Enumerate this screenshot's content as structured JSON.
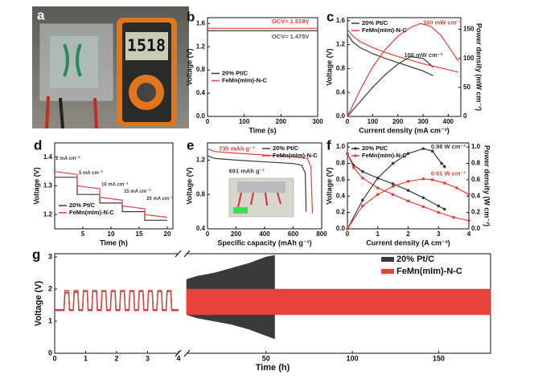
{
  "panel_a": {
    "label": "a",
    "display": "1518"
  },
  "chart_data": [
    {
      "type": "line",
      "label": "b",
      "xlabel": "Time (s)",
      "ylabel": "Voltage (V)",
      "xlim": [
        0,
        300
      ],
      "xticks": [
        0,
        100,
        200,
        300
      ],
      "ylim": [
        0,
        1.7
      ],
      "yticks": [
        {
          "value": 0,
          "label": "0.0"
        },
        0.4,
        0.8,
        1.2,
        1.6
      ],
      "legend": "center-left",
      "series": [
        {
          "name": "20% Pt/C",
          "color": "#3a3a3a",
          "x": [
            0,
            300
          ],
          "values": [
            1.475,
            1.475
          ]
        },
        {
          "name": "FeMn(mIm)-N-C",
          "color": "#e8403a",
          "x": [
            0,
            300
          ],
          "values": [
            1.518,
            1.518
          ]
        }
      ],
      "annotations": [
        {
          "text": "OCV= 1.518V",
          "color": "#e8403a"
        },
        {
          "text": "OCV= 1.475V",
          "color": "#555555"
        }
      ]
    },
    {
      "type": "line",
      "label": "c",
      "xlabel": "Current density (mA cm⁻²)",
      "ylabel": "Voltage (V)",
      "y2label": "Power density (mW cm⁻²)",
      "xlim": [
        0,
        450
      ],
      "xticks": [
        0,
        100,
        200,
        300,
        400
      ],
      "ylim": [
        0,
        1.65
      ],
      "yticks": [
        {
          "value": 0,
          "label": "0.0"
        },
        0.4,
        0.8,
        1.2,
        1.6
      ],
      "y2lim": [
        0,
        170
      ],
      "y2ticks": [
        0,
        50,
        100,
        150
      ],
      "legend": "top-left",
      "series": [
        {
          "name": "20% Pt/C",
          "color": "#3a3a3a",
          "x": [
            0,
            20,
            50,
            100,
            150,
            200,
            250,
            300,
            340
          ],
          "values": [
            1.38,
            1.25,
            1.15,
            1.05,
            0.97,
            0.9,
            0.83,
            0.76,
            0.68
          ]
        },
        {
          "name": "FeMn(mIm)-N-C",
          "color": "#e8403a",
          "x": [
            0,
            20,
            50,
            100,
            150,
            200,
            250,
            300,
            350,
            400,
            440
          ],
          "values": [
            1.45,
            1.35,
            1.25,
            1.15,
            1.07,
            1.0,
            0.94,
            0.88,
            0.83,
            0.78,
            0.74
          ]
        },
        {
          "color": "#3a3a3a",
          "axis": "y2",
          "x": [
            0,
            50,
            100,
            150,
            200,
            250,
            300,
            340
          ],
          "values": [
            0,
            25,
            50,
            72,
            90,
            103,
            100,
            85
          ]
        },
        {
          "color": "#e8403a",
          "axis": "y2",
          "x": [
            0,
            50,
            100,
            150,
            200,
            250,
            290,
            330,
            370,
            410,
            440
          ],
          "values": [
            0,
            45,
            85,
            115,
            138,
            153,
            160,
            155,
            140,
            115,
            95
          ]
        }
      ],
      "annotations": [
        {
          "text": "160 mW cm⁻²",
          "color": "#e8403a"
        },
        {
          "text": "106 mW cm⁻²",
          "color": "#3a3a3a"
        }
      ]
    },
    {
      "type": "line",
      "label": "d",
      "xlabel": "Time (h)",
      "ylabel": "Voltage (V)",
      "xlim": [
        0,
        21
      ],
      "xticks": [
        5,
        10,
        15,
        20
      ],
      "ylim": [
        1.15,
        1.45
      ],
      "yticks": [
        1.2,
        1.3,
        1.4
      ],
      "legend": "bottom-left",
      "series": [
        {
          "name": "20% Pt/C",
          "color": "#3a3a3a",
          "x": [
            0,
            4,
            4,
            8,
            8,
            12,
            12,
            16,
            16,
            20
          ],
          "values": [
            1.33,
            1.33,
            1.27,
            1.27,
            1.24,
            1.24,
            1.21,
            1.21,
            1.18,
            1.18
          ]
        },
        {
          "name": "FeMn(mIm)-N-C",
          "color": "#e8403a",
          "x": [
            0,
            4,
            4,
            8,
            8,
            12,
            12,
            16,
            16,
            20
          ],
          "values": [
            1.35,
            1.34,
            1.3,
            1.29,
            1.26,
            1.25,
            1.23,
            1.22,
            1.2,
            1.19
          ]
        }
      ],
      "annotations": [
        {
          "text": "2 mA cm⁻²",
          "color": "#3a3a3a"
        },
        {
          "text": "5 mA cm⁻²",
          "color": "#3a3a3a"
        },
        {
          "text": "10 mA cm⁻²",
          "color": "#3a3a3a"
        },
        {
          "text": "15 mA cm⁻²",
          "color": "#3a3a3a"
        },
        {
          "text": "20 mA cm⁻²",
          "color": "#3a3a3a"
        }
      ]
    },
    {
      "type": "line",
      "label": "e",
      "xlabel": "Specific capacity (mAh g⁻¹)",
      "ylabel": "Voltage (V)",
      "xlim": [
        0,
        800
      ],
      "xticks": [
        0,
        200,
        400,
        600,
        800
      ],
      "ylim": [
        0.4,
        1.4
      ],
      "yticks": [
        0.4,
        0.8,
        1.2
      ],
      "legend": "top-right",
      "series": [
        {
          "name": "20% Pt/C",
          "color": "#3a3a3a",
          "x": [
            0,
            50,
            200,
            400,
            600,
            660,
            685,
            691
          ],
          "values": [
            1.25,
            1.22,
            1.2,
            1.18,
            1.16,
            1.14,
            1.05,
            0.6
          ]
        },
        {
          "name": "FeMn(mIm)-N-C",
          "color": "#e8403a",
          "x": [
            0,
            50,
            200,
            400,
            600,
            700,
            725,
            735
          ],
          "values": [
            1.33,
            1.3,
            1.28,
            1.26,
            1.24,
            1.22,
            1.12,
            0.58
          ]
        }
      ],
      "annotations": [
        {
          "text": "735 mAh g⁻¹",
          "color": "#e8403a"
        },
        {
          "text": "691 mAh g⁻¹",
          "color": "#3a3a3a"
        }
      ]
    },
    {
      "type": "line",
      "label": "f",
      "xlabel": "Current density (A cm⁻²)",
      "ylabel": "Voltage (V)",
      "y2label": "Power density (W cm⁻²)",
      "xlim": [
        0,
        4
      ],
      "xticks": [
        0,
        1,
        2,
        3,
        4
      ],
      "ylim": [
        0,
        1.05
      ],
      "yticks": [
        {
          "value": 0,
          "label": "0.0"
        },
        0.2,
        0.4,
        0.6,
        0.8,
        {
          "value": 1,
          "label": "1.0"
        }
      ],
      "y2lim": [
        0,
        1.05
      ],
      "y2ticks": [
        {
          "value": 0,
          "label": "0.0"
        },
        0.2,
        0.4,
        0.6,
        0.8,
        {
          "value": 1,
          "label": "1.0"
        }
      ],
      "legend": "top-left",
      "marker": "circle",
      "series": [
        {
          "name": "20% Pt/C",
          "color": "#3a3a3a",
          "x": [
            0,
            0.2,
            0.5,
            1,
            1.5,
            2,
            2.5,
            3,
            3.2
          ],
          "values": [
            0.92,
            0.78,
            0.7,
            0.62,
            0.55,
            0.47,
            0.38,
            0.28,
            0.24
          ]
        },
        {
          "name": "FeMn(mIm)-N-C",
          "color": "#e8403a",
          "x": [
            0,
            0.2,
            0.5,
            1,
            1.5,
            2,
            2.5,
            3,
            3.5,
            4
          ],
          "values": [
            0.92,
            0.75,
            0.62,
            0.5,
            0.42,
            0.34,
            0.27,
            0.2,
            0.14,
            0.1
          ]
        },
        {
          "color": "#3a3a3a",
          "axis": "y2",
          "x": [
            0,
            0.5,
            1,
            1.5,
            2,
            2.5,
            2.8,
            3.1,
            3.2
          ],
          "values": [
            0,
            0.35,
            0.62,
            0.8,
            0.92,
            0.98,
            0.95,
            0.8,
            0.76
          ]
        },
        {
          "color": "#e8403a",
          "axis": "y2",
          "x": [
            0,
            0.5,
            1,
            1.5,
            2,
            2.5,
            2.8,
            3.2,
            3.6,
            4
          ],
          "values": [
            0,
            0.28,
            0.42,
            0.52,
            0.58,
            0.61,
            0.6,
            0.56,
            0.5,
            0.42
          ]
        }
      ],
      "annotations": [
        {
          "text": "0.98 W cm⁻²",
          "color": "#3a3a3a"
        },
        {
          "text": "0.61 W cm⁻²",
          "color": "#e8403a"
        }
      ]
    },
    {
      "type": "line",
      "label": "g",
      "xlabel": "Time (h)",
      "ylabel": "Voltage (V)",
      "xlim": [
        0,
        4
      ],
      "xticks": [
        0,
        1,
        2,
        3,
        4
      ],
      "x2lim": [
        4,
        180
      ],
      "x2ticks": [
        50,
        100,
        150
      ],
      "ylim": [
        0,
        3.1
      ],
      "yticks": [
        0,
        1,
        2,
        3
      ],
      "legend": "top-right",
      "x": [
        0,
        0.3,
        0.33,
        0.45,
        0.48,
        0.6,
        0.63,
        0.75,
        0.78,
        0.9,
        0.93,
        1.05,
        1.08,
        1.2,
        1.23,
        1.35,
        1.38,
        1.5,
        1.53,
        1.65,
        1.68,
        1.8,
        1.83,
        1.95,
        1.98,
        2.1,
        2.13,
        2.25,
        2.28,
        2.4,
        2.43,
        2.55,
        2.58,
        2.7,
        2.73,
        2.85,
        2.88,
        3.0,
        3.03,
        3.15,
        3.18,
        3.3,
        3.33,
        3.45,
        3.48,
        3.6,
        3.63,
        3.75,
        3.78,
        4
      ],
      "series": [
        {
          "name": "20% Pt/C",
          "color": "#3a3a3a",
          "values": [
            1.35,
            1.35,
            1.88,
            1.88,
            1.35,
            1.35,
            1.9,
            1.9,
            1.35,
            1.35,
            1.93,
            1.93,
            1.35,
            1.35,
            1.93,
            1.93,
            1.35,
            1.35,
            1.93,
            1.93,
            1.35,
            1.35,
            1.93,
            1.93,
            1.35,
            1.35,
            1.93,
            1.93,
            1.35,
            1.35,
            1.93,
            1.93,
            1.35,
            1.35,
            1.93,
            1.93,
            1.35,
            1.35,
            1.93,
            1.93,
            1.35,
            1.35,
            1.93,
            1.93,
            1.35,
            1.35,
            1.93,
            1.93,
            1.35,
            1.35
          ],
          "band_x": [
            4,
            10,
            20,
            30,
            40,
            50,
            55
          ],
          "band_high": [
            2.3,
            2.4,
            2.5,
            2.65,
            2.8,
            3.0,
            3.05
          ],
          "band_low": [
            1.2,
            1.1,
            1.0,
            0.9,
            0.75,
            0.55,
            0.45
          ]
        },
        {
          "name": "FeMn(mIm)-N-C",
          "color": "#e8403a",
          "values": [
            1.33,
            1.33,
            1.95,
            1.95,
            1.33,
            1.33,
            1.95,
            1.95,
            1.33,
            1.33,
            1.95,
            1.95,
            1.33,
            1.33,
            1.95,
            1.95,
            1.33,
            1.33,
            1.95,
            1.95,
            1.33,
            1.33,
            1.95,
            1.95,
            1.33,
            1.33,
            1.95,
            1.95,
            1.33,
            1.33,
            1.95,
            1.95,
            1.33,
            1.33,
            1.95,
            1.95,
            1.33,
            1.33,
            1.95,
            1.95,
            1.33,
            1.33,
            1.95,
            1.95,
            1.33,
            1.33,
            1.95,
            1.95,
            1.33,
            1.33
          ],
          "band_x": [
            4,
            180
          ],
          "band_high": [
            2.0,
            2.0
          ],
          "band_low": [
            1.2,
            1.2
          ]
        }
      ]
    }
  ]
}
